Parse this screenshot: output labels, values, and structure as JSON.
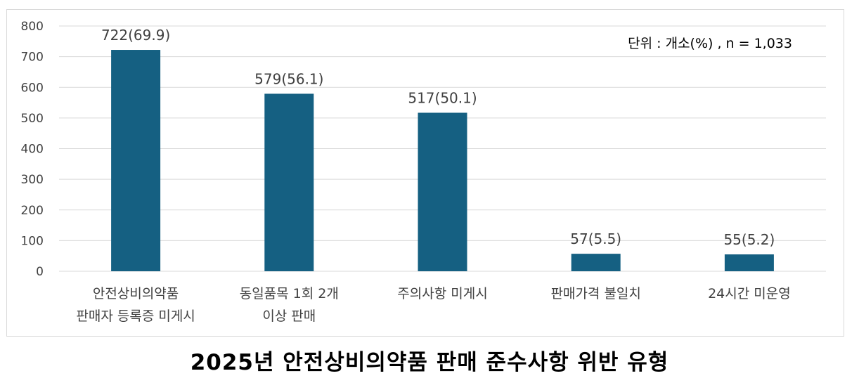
{
  "chart_data": {
    "type": "bar",
    "title": "2025년 안전상비의약품 판매 준수사항 위반 유형",
    "unit_note": "단위 : 개소(%) ,  n = 1,033",
    "categories": [
      [
        "안전상비의약품",
        "판매자 등록증 미게시"
      ],
      [
        "동일품목 1회 2개",
        "이상 판매"
      ],
      [
        "주의사항 미게시"
      ],
      [
        "판매가격 불일치"
      ],
      [
        "24시간 미운영"
      ]
    ],
    "values": [
      722,
      579,
      517,
      57,
      55
    ],
    "data_labels": [
      "722(69.9)",
      "579(56.1)",
      "517(50.1)",
      "57(5.5)",
      "55(5.2)"
    ],
    "ylim": [
      0,
      800
    ],
    "yticks": [
      0,
      100,
      200,
      300,
      400,
      500,
      600,
      700,
      800
    ],
    "grid": true,
    "colors": {
      "bar": "#156082",
      "grid": "#d9d9d9",
      "text": "#404040"
    }
  }
}
